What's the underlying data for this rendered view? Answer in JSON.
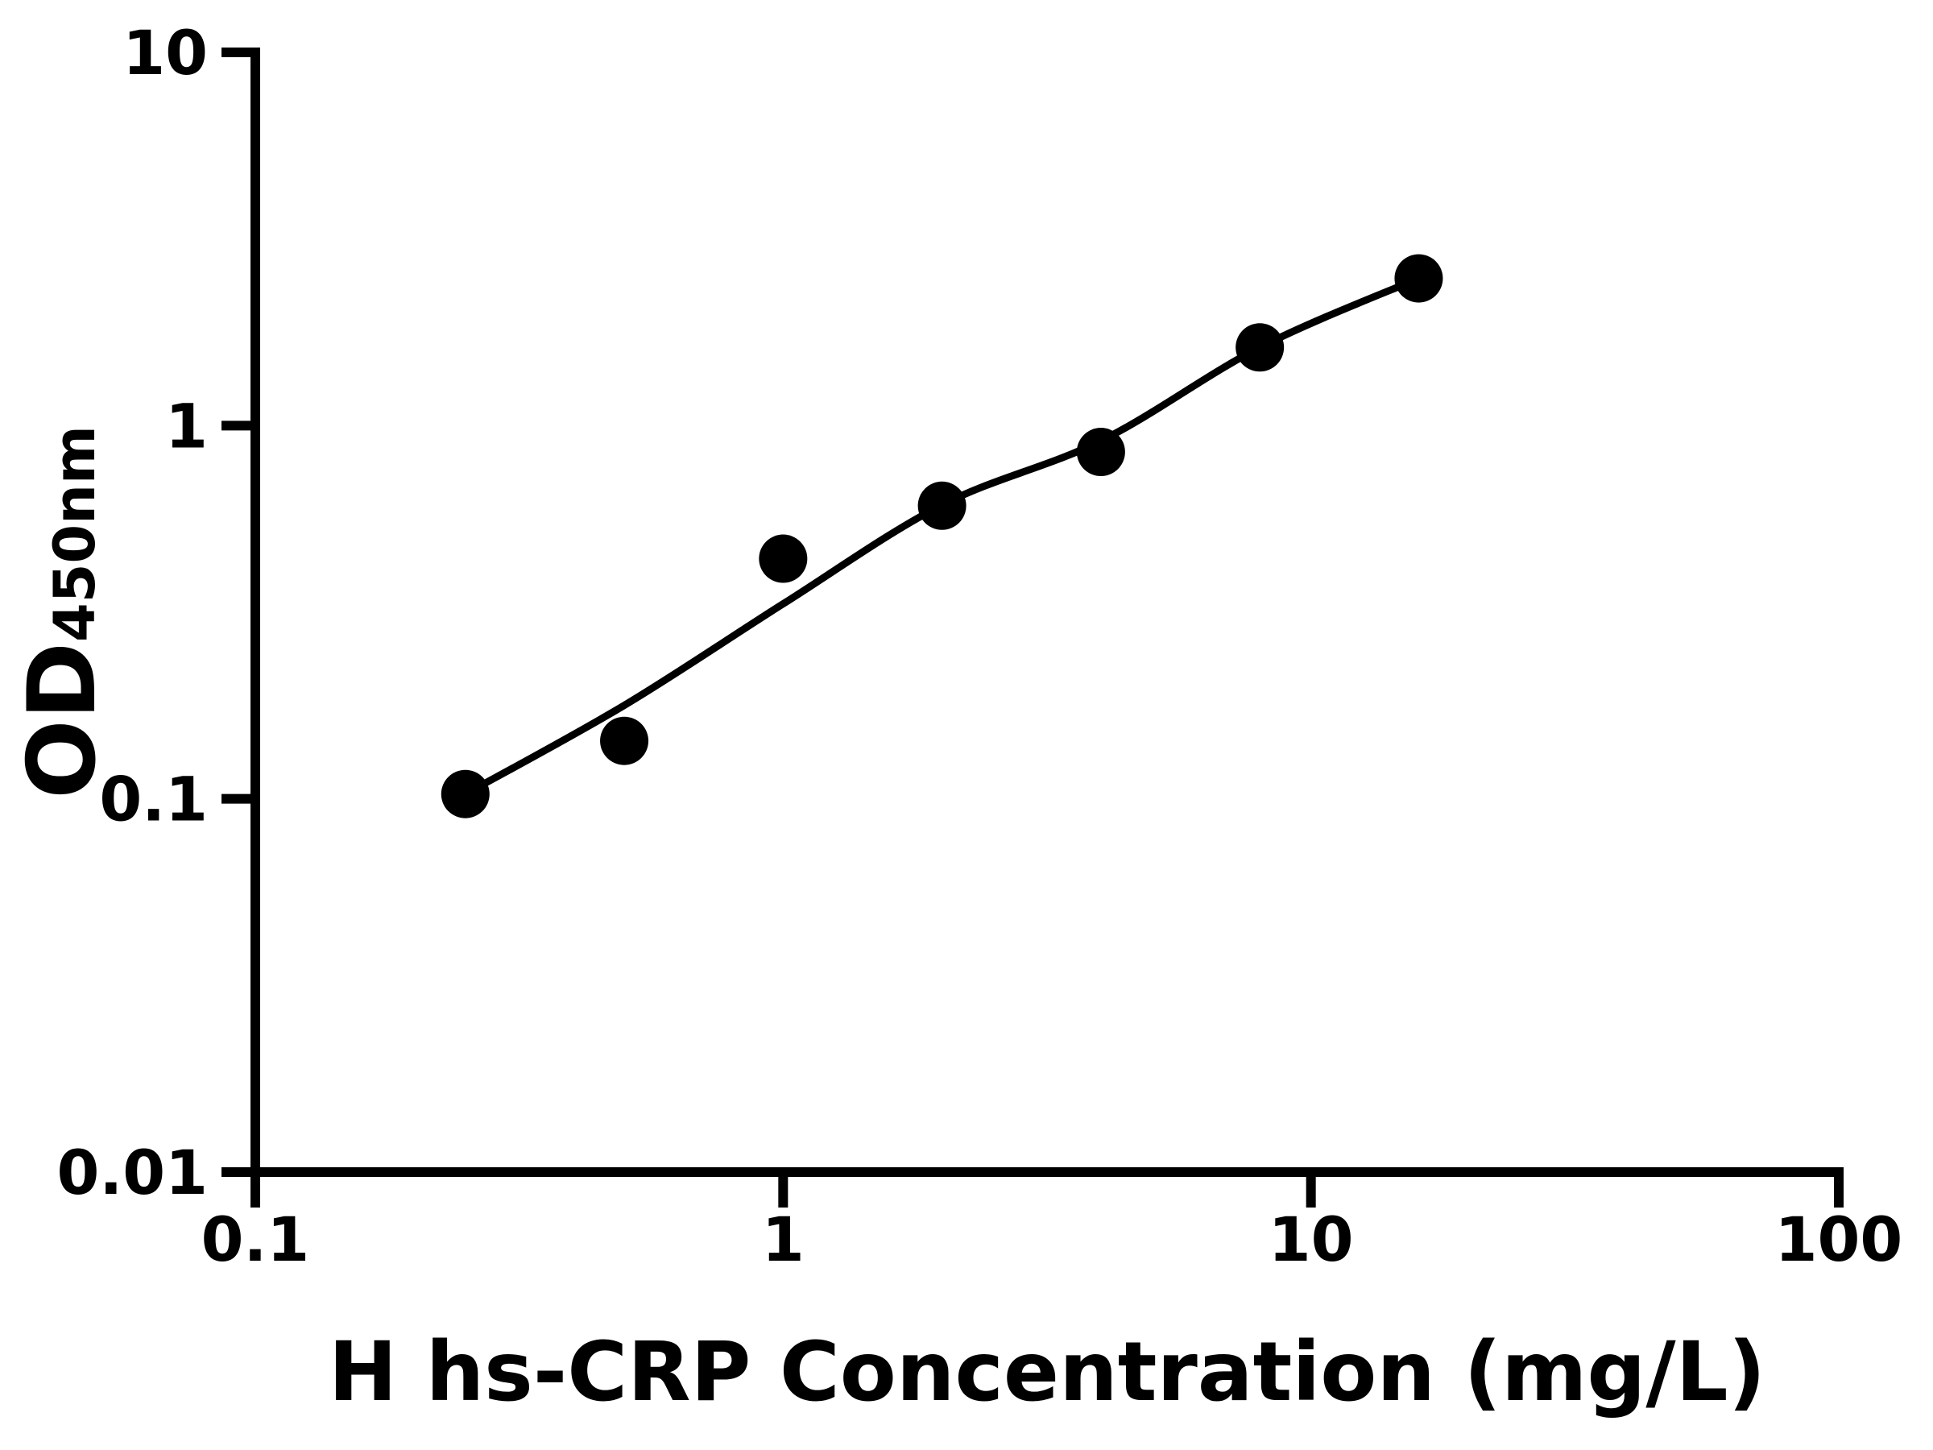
{
  "figure": {
    "background_color": "#ffffff",
    "ink_color": "#000000"
  },
  "chart_data": {
    "type": "scatter",
    "title": "",
    "xlabel": "H hs-CRP Concentration (mg/L)",
    "ylabel_main": "OD",
    "ylabel_sub": "450nm",
    "x_scale": "log",
    "y_scale": "log",
    "xlim": [
      0.1,
      100
    ],
    "ylim": [
      0.01,
      10
    ],
    "grid": false,
    "legend": null,
    "x_ticks": [
      {
        "value": 0.1,
        "label": "0.1"
      },
      {
        "value": 1,
        "label": "1"
      },
      {
        "value": 10,
        "label": "10"
      },
      {
        "value": 100,
        "label": "100"
      }
    ],
    "y_ticks": [
      {
        "value": 0.01,
        "label": "0.01"
      },
      {
        "value": 0.1,
        "label": "0.1"
      },
      {
        "value": 1,
        "label": "1"
      },
      {
        "value": 10,
        "label": "10"
      }
    ],
    "series": [
      {
        "name": "standard-points",
        "marker": "circle",
        "color": "#000000",
        "points": [
          {
            "x": 0.25,
            "y": 0.103
          },
          {
            "x": 0.5,
            "y": 0.143
          },
          {
            "x": 1,
            "y": 0.44
          },
          {
            "x": 2,
            "y": 0.61
          },
          {
            "x": 4,
            "y": 0.85
          },
          {
            "x": 8,
            "y": 1.62
          },
          {
            "x": 16,
            "y": 2.48
          }
        ]
      }
    ],
    "fit_curve": {
      "name": "fitted-curve",
      "color": "#000000",
      "points": [
        {
          "x": 0.25,
          "y": 0.103
        },
        {
          "x": 0.5,
          "y": 0.178
        },
        {
          "x": 1,
          "y": 0.333
        },
        {
          "x": 2,
          "y": 0.613
        },
        {
          "x": 4,
          "y": 0.91
        },
        {
          "x": 8,
          "y": 1.62
        },
        {
          "x": 16,
          "y": 2.48
        }
      ]
    }
  }
}
